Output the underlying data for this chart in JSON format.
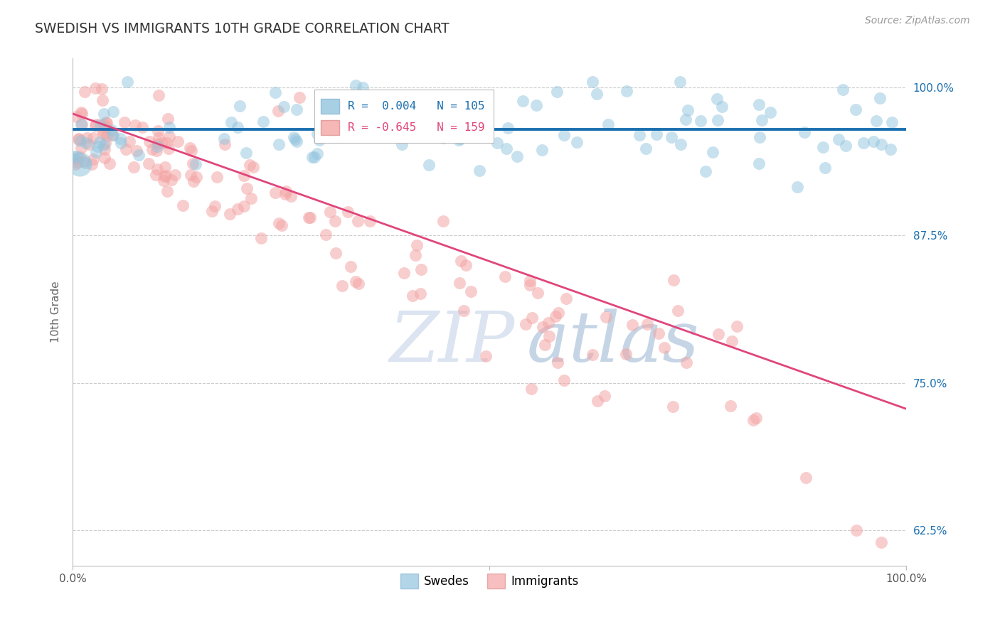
{
  "title": "SWEDISH VS IMMIGRANTS 10TH GRADE CORRELATION CHART",
  "source": "Source: ZipAtlas.com",
  "ylabel": "10th Grade",
  "legend_swedes": "Swedes",
  "legend_immigrants": "Immigrants",
  "r_swedes": 0.004,
  "n_swedes": 105,
  "r_immigrants": -0.645,
  "n_immigrants": 159,
  "ytick_labels": [
    "62.5%",
    "75.0%",
    "87.5%",
    "100.0%"
  ],
  "ytick_values": [
    0.625,
    0.75,
    0.875,
    1.0
  ],
  "xmin": 0.0,
  "xmax": 1.0,
  "ymin": 0.595,
  "ymax": 1.025,
  "blue_color": "#92c5de",
  "pink_color": "#f4a5a5",
  "blue_line_color": "#1a6faf",
  "pink_line_color": "#e0457b",
  "background_color": "#ffffff",
  "grid_color": "#cccccc",
  "title_color": "#333333",
  "watermark_zip_color": "#d0dff0",
  "watermark_atlas_color": "#b0cce8",
  "blue_trend_y0": 0.965,
  "blue_trend_y1": 0.965,
  "pink_trend_y0": 0.978,
  "pink_trend_y1": 0.728
}
